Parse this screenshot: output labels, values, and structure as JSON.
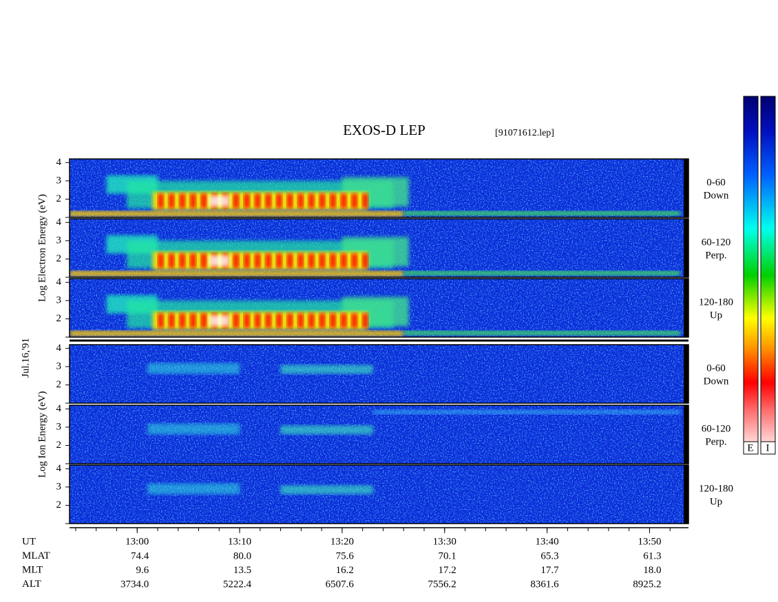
{
  "chart_data": {
    "type": "spectrogram",
    "title": "EXOS-D LEP",
    "file": "[91071612.lep]",
    "date": "Jul.16,'91",
    "xlim": [
      773.4,
      833.8
    ],
    "xticks": [
      {
        "value": 780,
        "label": "13:00"
      },
      {
        "value": 790,
        "label": "13:10"
      },
      {
        "value": 800,
        "label": "13:20"
      },
      {
        "value": 810,
        "label": "13:30"
      },
      {
        "value": 820,
        "label": "13:40"
      },
      {
        "value": 830,
        "label": "13:50"
      }
    ],
    "ylim": [
      1,
      4.2
    ],
    "yticks": [
      2,
      3,
      4
    ],
    "groups": [
      {
        "ylabel": "Log Electron Energy (eV)",
        "panels": [
          {
            "label": [
              "0-60",
              "Down"
            ]
          },
          {
            "label": [
              "60-120",
              "Perp."
            ]
          },
          {
            "label": [
              "120-180",
              "Up"
            ]
          }
        ]
      },
      {
        "ylabel": "Log Ion Energy (eV)",
        "panels": [
          {
            "label": [
              "0-60",
              "Down"
            ]
          },
          {
            "label": [
              "60-120",
              "Perp."
            ]
          },
          {
            "label": [
              "120-180",
              "Up"
            ]
          }
        ]
      }
    ],
    "colorbar_labels": [
      "E",
      "I"
    ],
    "ephemeris": {
      "labels": [
        "UT",
        "MLAT",
        "MLT",
        "ALT"
      ],
      "rows": [
        [
          "74.4",
          "80.0",
          "75.6",
          "70.1",
          "65.3",
          "61.3"
        ],
        [
          "9.6",
          "13.5",
          "16.2",
          "17.2",
          "17.7",
          "18.0"
        ],
        [
          "3734.0",
          "5222.4",
          "6507.6",
          "7556.2",
          "8361.6",
          "8925.2"
        ]
      ]
    }
  }
}
